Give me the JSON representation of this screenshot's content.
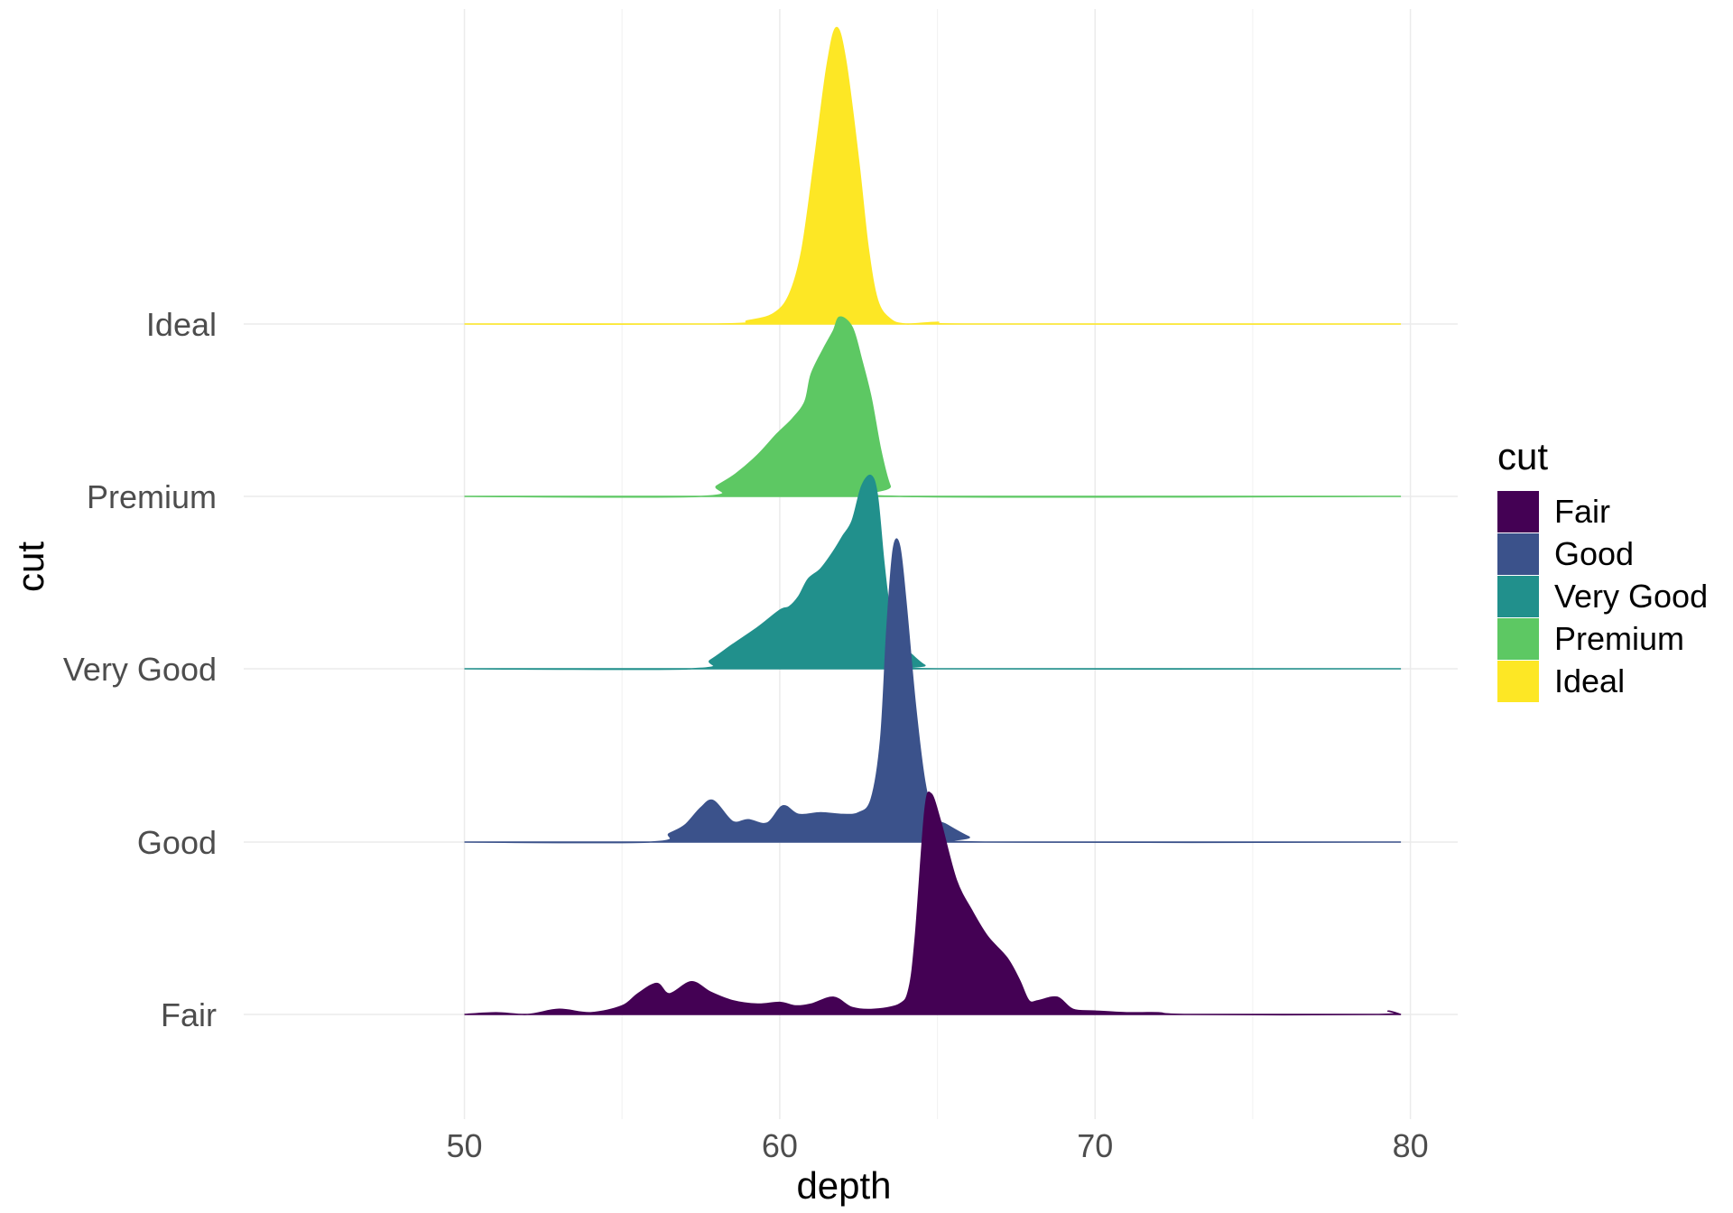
{
  "chart_data": {
    "type": "area",
    "subtype": "ridgeline-density",
    "title": "",
    "xlabel": "depth",
    "ylabel": "cut",
    "xlim": [
      43,
      81.5
    ],
    "x_ticks": [
      50,
      60,
      70,
      80
    ],
    "x_tick_labels": [
      "50",
      "60",
      "70",
      "80"
    ],
    "grid": true,
    "legend": {
      "title": "cut",
      "placement": "right",
      "entries": [
        {
          "label": "Fair",
          "color": "#440154"
        },
        {
          "label": "Good",
          "color": "#3b528b"
        },
        {
          "label": "Very Good",
          "color": "#21908c"
        },
        {
          "label": "Premium",
          "color": "#5dc863"
        },
        {
          "label": "Ideal",
          "color": "#fde725"
        }
      ]
    },
    "categories": [
      "Fair",
      "Good",
      "Very Good",
      "Premium",
      "Ideal"
    ],
    "density_unit": "relative height in row spacings",
    "series": [
      {
        "name": "Fair",
        "color": "#440154",
        "points": [
          [
            50,
            0
          ],
          [
            51,
            0.01
          ],
          [
            52,
            0
          ],
          [
            53,
            0.03
          ],
          [
            54,
            0.01
          ],
          [
            55,
            0.05
          ],
          [
            55.5,
            0.12
          ],
          [
            56.1,
            0.18
          ],
          [
            56.5,
            0.12
          ],
          [
            57.2,
            0.19
          ],
          [
            57.8,
            0.13
          ],
          [
            58.5,
            0.08
          ],
          [
            59.3,
            0.06
          ],
          [
            60,
            0.07
          ],
          [
            60.5,
            0.05
          ],
          [
            61,
            0.06
          ],
          [
            61.7,
            0.1
          ],
          [
            62.3,
            0.04
          ],
          [
            63,
            0.03
          ],
          [
            63.8,
            0.06
          ],
          [
            64.1,
            0.15
          ],
          [
            64.3,
            0.45
          ],
          [
            64.6,
            1.18
          ],
          [
            64.8,
            1.28
          ],
          [
            65.1,
            1.12
          ],
          [
            65.6,
            0.78
          ],
          [
            66.1,
            0.6
          ],
          [
            66.6,
            0.45
          ],
          [
            67.2,
            0.33
          ],
          [
            67.6,
            0.2
          ],
          [
            67.9,
            0.08
          ],
          [
            68.2,
            0.08
          ],
          [
            68.8,
            0.1
          ],
          [
            69.3,
            0.03
          ],
          [
            70,
            0.02
          ],
          [
            71,
            0.01
          ],
          [
            72,
            0.01
          ],
          [
            73,
            0
          ],
          [
            79,
            0
          ],
          [
            79.3,
            0.02
          ],
          [
            79.7,
            0
          ]
        ]
      },
      {
        "name": "Good",
        "color": "#3b528b",
        "points": [
          [
            50,
            0
          ],
          [
            55.9,
            0
          ],
          [
            56.5,
            0.05
          ],
          [
            57,
            0.1
          ],
          [
            57.5,
            0.2
          ],
          [
            57.9,
            0.24
          ],
          [
            58.5,
            0.12
          ],
          [
            59,
            0.13
          ],
          [
            59.6,
            0.11
          ],
          [
            60.1,
            0.21
          ],
          [
            60.6,
            0.16
          ],
          [
            61.3,
            0.17
          ],
          [
            62,
            0.16
          ],
          [
            62.5,
            0.17
          ],
          [
            62.9,
            0.25
          ],
          [
            63.2,
            0.6
          ],
          [
            63.4,
            1.25
          ],
          [
            63.6,
            1.7
          ],
          [
            63.8,
            1.72
          ],
          [
            64,
            1.4
          ],
          [
            64.3,
            0.8
          ],
          [
            64.6,
            0.35
          ],
          [
            64.9,
            0.15
          ],
          [
            65.3,
            0.1
          ],
          [
            66,
            0.03
          ],
          [
            66.5,
            0
          ],
          [
            79.7,
            0
          ]
        ]
      },
      {
        "name": "Very Good",
        "color": "#21908c",
        "points": [
          [
            50,
            0
          ],
          [
            57.2,
            0
          ],
          [
            57.8,
            0.05
          ],
          [
            58.5,
            0.14
          ],
          [
            59.3,
            0.24
          ],
          [
            60,
            0.34
          ],
          [
            60.3,
            0.36
          ],
          [
            60.6,
            0.42
          ],
          [
            60.9,
            0.52
          ],
          [
            61.3,
            0.58
          ],
          [
            61.7,
            0.68
          ],
          [
            62,
            0.77
          ],
          [
            62.3,
            0.86
          ],
          [
            62.6,
            1.06
          ],
          [
            62.9,
            1.12
          ],
          [
            63.1,
            1.0
          ],
          [
            63.3,
            0.62
          ],
          [
            63.5,
            0.33
          ],
          [
            63.8,
            0.16
          ],
          [
            64.2,
            0.08
          ],
          [
            64.6,
            0.02
          ],
          [
            65,
            0
          ],
          [
            79.7,
            0
          ]
        ]
      },
      {
        "name": "Premium",
        "color": "#5dc863",
        "points": [
          [
            50,
            0
          ],
          [
            57.5,
            0
          ],
          [
            58,
            0.06
          ],
          [
            58.6,
            0.13
          ],
          [
            59.3,
            0.24
          ],
          [
            59.9,
            0.36
          ],
          [
            60.4,
            0.45
          ],
          [
            60.8,
            0.55
          ],
          [
            61,
            0.71
          ],
          [
            61.4,
            0.86
          ],
          [
            61.7,
            0.96
          ],
          [
            61.9,
            1.04
          ],
          [
            62.3,
            0.98
          ],
          [
            62.6,
            0.79
          ],
          [
            62.9,
            0.57
          ],
          [
            63.2,
            0.27
          ],
          [
            63.5,
            0.06
          ],
          [
            63.8,
            0
          ],
          [
            79.7,
            0
          ]
        ]
      },
      {
        "name": "Ideal",
        "color": "#fde725",
        "points": [
          [
            50,
            0
          ],
          [
            58,
            0
          ],
          [
            59,
            0.02
          ],
          [
            59.8,
            0.06
          ],
          [
            60.3,
            0.17
          ],
          [
            60.7,
            0.43
          ],
          [
            61.1,
            0.95
          ],
          [
            61.5,
            1.5
          ],
          [
            61.8,
            1.72
          ],
          [
            62.1,
            1.52
          ],
          [
            62.5,
            0.95
          ],
          [
            62.8,
            0.45
          ],
          [
            63.1,
            0.14
          ],
          [
            63.5,
            0.03
          ],
          [
            64,
            0
          ],
          [
            65,
            0.01
          ],
          [
            66,
            0
          ],
          [
            79.7,
            0
          ]
        ]
      }
    ]
  }
}
